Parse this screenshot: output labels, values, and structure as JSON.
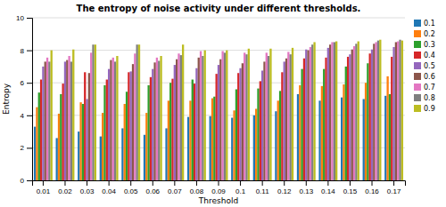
{
  "chart_data": {
    "type": "bar",
    "title": "The entropy of noise activity under different thresholds.",
    "xlabel": "Threshold",
    "ylabel": "Entropy",
    "categories": [
      "0.01",
      "0.02",
      "0.03",
      "0.04",
      "0.05",
      "0.06",
      "0.07",
      "0.08",
      "0.09",
      "0.1",
      "0.11",
      "0.12",
      "0.13",
      "0.14",
      "0.15",
      "0.16",
      "0.17"
    ],
    "series": [
      {
        "name": "0.1",
        "color": "#1f77b4",
        "values": [
          3.3,
          2.6,
          3.0,
          2.7,
          3.2,
          2.8,
          3.2,
          3.9,
          3.95,
          3.85,
          4.0,
          4.25,
          5.3,
          4.9,
          5.1,
          5.0,
          5.2
        ]
      },
      {
        "name": "0.2",
        "color": "#ff7f0e",
        "values": [
          4.5,
          4.1,
          4.8,
          4.15,
          4.7,
          4.15,
          4.9,
          4.9,
          5.05,
          4.3,
          4.4,
          4.9,
          5.85,
          5.8,
          5.9,
          6.0,
          6.4
        ]
      },
      {
        "name": "0.3",
        "color": "#2ca02c",
        "values": [
          5.4,
          5.3,
          4.7,
          5.85,
          5.45,
          5.85,
          6.0,
          6.2,
          5.15,
          5.6,
          5.65,
          5.5,
          6.85,
          6.85,
          7.0,
          7.2,
          5.3
        ]
      },
      {
        "name": "0.4",
        "color": "#d62728",
        "values": [
          6.2,
          5.95,
          6.65,
          6.2,
          6.65,
          6.35,
          6.25,
          5.95,
          6.55,
          6.6,
          6.1,
          6.65,
          7.5,
          7.55,
          7.6,
          7.8,
          7.6
        ]
      },
      {
        "name": "0.5",
        "color": "#9467bd",
        "values": [
          7.0,
          7.3,
          5.0,
          6.85,
          6.7,
          6.85,
          7.1,
          6.9,
          7.1,
          6.9,
          6.75,
          7.3,
          8.05,
          8.15,
          7.75,
          8.05,
          8.2
        ]
      },
      {
        "name": "0.6",
        "color": "#8c564b",
        "values": [
          7.3,
          7.4,
          6.6,
          7.4,
          7.15,
          7.25,
          7.45,
          7.55,
          7.45,
          7.2,
          7.3,
          7.5,
          8.0,
          8.35,
          8.05,
          8.4,
          8.5
        ]
      },
      {
        "name": "0.7",
        "color": "#e377c2",
        "values": [
          7.55,
          7.65,
          7.85,
          7.55,
          7.8,
          7.55,
          7.8,
          7.95,
          7.95,
          7.85,
          7.85,
          7.9,
          8.2,
          8.5,
          8.25,
          8.5,
          8.55
        ]
      },
      {
        "name": "0.8",
        "color": "#7f7f7f",
        "values": [
          7.3,
          7.3,
          8.35,
          7.3,
          8.35,
          7.35,
          7.7,
          7.65,
          7.85,
          7.75,
          7.65,
          7.75,
          8.35,
          8.5,
          8.4,
          8.6,
          8.65
        ]
      },
      {
        "name": "0.9",
        "color": "#bcbd22",
        "values": [
          8.0,
          8.05,
          8.35,
          7.65,
          8.35,
          7.65,
          8.35,
          8.0,
          8.0,
          8.1,
          8.1,
          8.15,
          8.5,
          8.55,
          8.55,
          8.65,
          8.6
        ]
      }
    ],
    "ylim": [
      0,
      10
    ],
    "yticks": [
      0,
      2,
      4,
      6,
      8,
      10
    ],
    "grid": true,
    "legend": "right"
  }
}
